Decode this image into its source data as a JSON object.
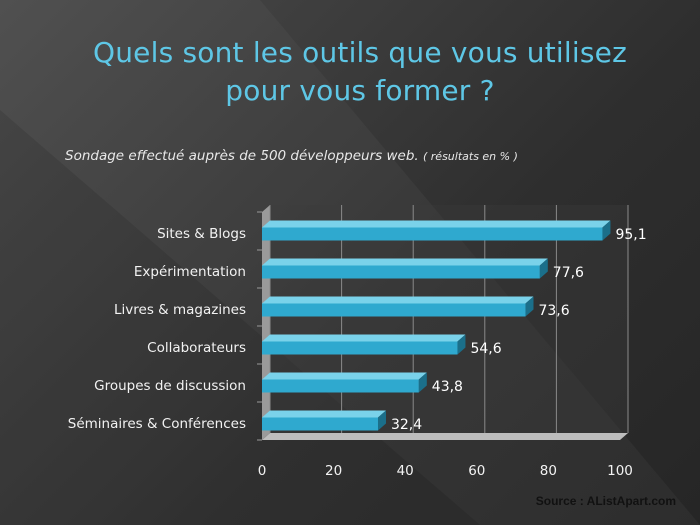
{
  "slide": {
    "title_line1": "Quels sont les outils que vous utilisez",
    "title_line2": "pour vous former ?",
    "subtitle_main": "Sondage effectué auprès de 500 développeurs web.",
    "subtitle_note": "( résultats en % )",
    "source": "Source : AListApart.com"
  },
  "colors": {
    "title": "#5ec7e6",
    "bar_front": "#2fa9cf",
    "bar_top": "#7ad2ea",
    "bar_side": "#1b6f8a"
  },
  "chart_data": {
    "type": "bar",
    "orientation": "horizontal",
    "style": "3d",
    "title": "",
    "xlabel": "",
    "ylabel": "",
    "categories": [
      "Sites & Blogs",
      "Expérimentation",
      "Livres & magazines",
      "Collaborateurs",
      "Groupes de discussion",
      "Séminaires & Conférences"
    ],
    "values": [
      95.1,
      77.6,
      73.6,
      54.6,
      43.8,
      32.4
    ],
    "value_labels": [
      "95,1",
      "77,6",
      "73,6",
      "54,6",
      "43,8",
      "32,4"
    ],
    "xlim": [
      0,
      100
    ],
    "xticks": [
      0,
      20,
      40,
      60,
      80,
      100
    ],
    "grid": true,
    "legend": "none"
  }
}
